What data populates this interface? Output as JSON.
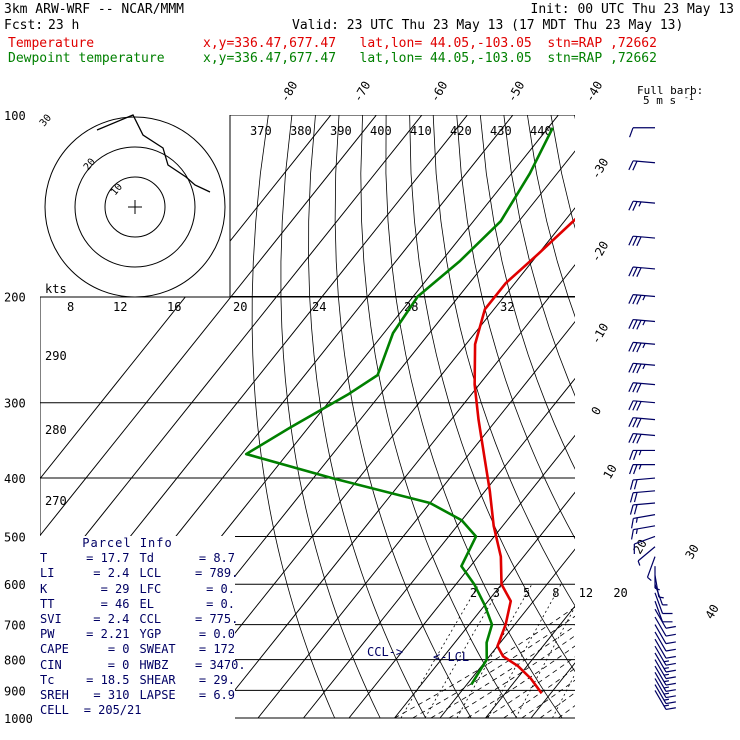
{
  "header": {
    "model": "3km ARW-WRF -- NCAR/MMM",
    "init": "Init: 00 UTC Thu 23 May 13",
    "fcst_label": "Fcst:",
    "fcst_value": "23 h",
    "valid": "Valid: 23 UTC Thu 23 May 13 (17 MDT Thu 23 May 13)",
    "temp_label": "Temperature",
    "temp_loc": "x,y=336.47,677.47   lat,lon= 44.05,-103.05  stn=RAP ,72662",
    "dew_label": "Dewpoint temperature",
    "dew_loc": "x,y=336.47,677.47   lat,lon= 44.05,-103.05  stn=RAP ,72662"
  },
  "colors": {
    "temperature": "#e00000",
    "dewpoint": "#008000",
    "wind": "#000064",
    "lines": "#000000"
  },
  "wind_legend": {
    "title": "Full barb:",
    "value": "5 m s",
    "superscript": "-1"
  },
  "hodograph": {
    "unit": "kts",
    "speed_labels": [
      "8",
      "12",
      "16",
      "20",
      "24",
      "28",
      "32"
    ],
    "ring_labels": [
      "10",
      "20",
      "30"
    ]
  },
  "panel": {
    "title": "Parcel Info",
    "rows": [
      [
        "T",
        "17.7",
        "Td",
        "8.7"
      ],
      [
        "LI",
        "2.4",
        "LCL",
        "789."
      ],
      [
        "K",
        "29",
        "LFC",
        "0."
      ],
      [
        "TT",
        "46",
        "EL",
        "0."
      ],
      [
        "SVI",
        "2.4",
        "CCL",
        "775."
      ],
      [
        "PW",
        "2.21",
        "YGP",
        "0.0"
      ],
      [
        "CAPE",
        "0",
        "SWEAT",
        "172"
      ],
      [
        "CIN",
        "0",
        "HWBZ",
        "3470."
      ],
      [
        "Tc",
        "18.5",
        "SHEAR",
        "29."
      ],
      [
        "SREH",
        "310",
        "LAPSE",
        "6.9"
      ],
      [
        "CELL",
        "205/21",
        "",
        ""
      ]
    ]
  },
  "markers": {
    "ccl": "CCL->",
    "lcl": "<-LCL"
  },
  "chart_data": {
    "type": "line",
    "title": "",
    "y_axis": {
      "label": "",
      "scale": "log",
      "ticks": [
        100,
        200,
        300,
        400,
        500,
        600,
        700,
        800,
        900,
        1000
      ]
    },
    "isotherm_labels": [
      "-80",
      "-70",
      "-60",
      "-50",
      "-40",
      "-30",
      "-20",
      "-10",
      "0",
      "10",
      "20",
      "30",
      "40"
    ],
    "theta_labels": [
      "370",
      "380",
      "390",
      "400",
      "410",
      "420",
      "430",
      "440"
    ],
    "theta_labels_lower": [
      "290",
      "280",
      "270"
    ],
    "mixing_ratio_labels": [
      "2",
      "3",
      "5",
      "8",
      "12",
      "20"
    ],
    "series": [
      {
        "name": "Temperature",
        "points": [
          [
            105,
            -54
          ],
          [
            140,
            -57
          ],
          [
            170,
            -60
          ],
          [
            190,
            -62
          ],
          [
            210,
            -62
          ],
          [
            240,
            -58
          ],
          [
            280,
            -51
          ],
          [
            320,
            -44
          ],
          [
            370,
            -36
          ],
          [
            420,
            -29
          ],
          [
            480,
            -22
          ],
          [
            540,
            -15
          ],
          [
            600,
            -10
          ],
          [
            640,
            -5
          ],
          [
            700,
            -2
          ],
          [
            760,
            0
          ],
          [
            790,
            3
          ],
          [
            820,
            8
          ],
          [
            860,
            13
          ],
          [
            910,
            18
          ]
        ]
      },
      {
        "name": "Dewpoint temperature",
        "points": [
          [
            105,
            -79
          ],
          [
            125,
            -76
          ],
          [
            150,
            -74
          ],
          [
            175,
            -76
          ],
          [
            200,
            -79
          ],
          [
            230,
            -78
          ],
          [
            270,
            -74
          ],
          [
            290,
            -77
          ],
          [
            330,
            -84
          ],
          [
            365,
            -89
          ],
          [
            400,
            -66
          ],
          [
            440,
            -40
          ],
          [
            470,
            -30
          ],
          [
            500,
            -24
          ],
          [
            560,
            -22
          ],
          [
            600,
            -16
          ],
          [
            650,
            -10
          ],
          [
            700,
            -5
          ],
          [
            750,
            -3
          ],
          [
            800,
            0
          ],
          [
            880,
            1
          ]
        ]
      }
    ],
    "wind_barbs": [
      [
        105,
        270,
        10
      ],
      [
        120,
        275,
        20
      ],
      [
        140,
        275,
        25
      ],
      [
        160,
        275,
        30
      ],
      [
        180,
        275,
        30
      ],
      [
        200,
        275,
        35
      ],
      [
        220,
        275,
        35
      ],
      [
        240,
        275,
        35
      ],
      [
        260,
        275,
        35
      ],
      [
        280,
        275,
        30
      ],
      [
        300,
        275,
        30
      ],
      [
        320,
        275,
        30
      ],
      [
        340,
        275,
        30
      ],
      [
        360,
        270,
        25
      ],
      [
        380,
        270,
        25
      ],
      [
        400,
        265,
        20
      ],
      [
        420,
        265,
        20
      ],
      [
        440,
        265,
        20
      ],
      [
        460,
        260,
        15
      ],
      [
        480,
        260,
        15
      ],
      [
        500,
        250,
        10
      ],
      [
        520,
        230,
        5
      ],
      [
        540,
        200,
        5
      ],
      [
        560,
        180,
        5
      ],
      [
        580,
        170,
        5
      ],
      [
        600,
        160,
        5
      ],
      [
        620,
        160,
        10
      ],
      [
        640,
        160,
        10
      ],
      [
        660,
        150,
        10
      ],
      [
        680,
        150,
        10
      ],
      [
        700,
        150,
        10
      ],
      [
        720,
        150,
        10
      ],
      [
        740,
        150,
        10
      ],
      [
        760,
        150,
        15
      ],
      [
        780,
        150,
        15
      ],
      [
        800,
        150,
        15
      ],
      [
        820,
        150,
        15
      ],
      [
        840,
        150,
        15
      ],
      [
        860,
        150,
        15
      ],
      [
        880,
        150,
        15
      ],
      [
        900,
        150,
        15
      ]
    ]
  }
}
